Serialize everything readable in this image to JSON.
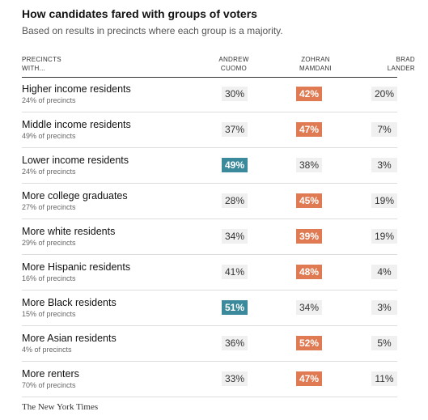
{
  "title": "How candidates fared with groups of voters",
  "subtitle": "Based on results in precincts where each group is a majority.",
  "headers": {
    "group_line1": "PRECINCTS",
    "group_line2": "WITH...",
    "c1_line1": "ANDREW",
    "c1_line2": "CUOMO",
    "c2_line1": "ZOHRAN",
    "c2_line2": "MAMDANI",
    "c3_line1": "BRAD",
    "c3_line2": "LANDER"
  },
  "colors": {
    "cuomo_highlight": "#3a8a9c",
    "mamdani_highlight": "#e07a52",
    "neutral_cell": "#f0f0f0"
  },
  "rows": [
    {
      "group": "Higher income residents",
      "share": "24% of precincts",
      "cuomo": "30%",
      "mamdani": "42%",
      "lander": "20%",
      "winner": "mamdani"
    },
    {
      "group": "Middle income residents",
      "share": "49% of precincts",
      "cuomo": "37%",
      "mamdani": "47%",
      "lander": "7%",
      "winner": "mamdani"
    },
    {
      "group": "Lower income residents",
      "share": "24% of precincts",
      "cuomo": "49%",
      "mamdani": "38%",
      "lander": "3%",
      "winner": "cuomo"
    },
    {
      "group": "More college graduates",
      "share": "27% of precincts",
      "cuomo": "28%",
      "mamdani": "45%",
      "lander": "19%",
      "winner": "mamdani"
    },
    {
      "group": "More white residents",
      "share": "29% of precincts",
      "cuomo": "34%",
      "mamdani": "39%",
      "lander": "19%",
      "winner": "mamdani"
    },
    {
      "group": "More Hispanic residents",
      "share": "16% of precincts",
      "cuomo": "41%",
      "mamdani": "48%",
      "lander": "4%",
      "winner": "mamdani"
    },
    {
      "group": "More Black residents",
      "share": "15% of precincts",
      "cuomo": "51%",
      "mamdani": "34%",
      "lander": "3%",
      "winner": "cuomo"
    },
    {
      "group": "More Asian residents",
      "share": "4% of precincts",
      "cuomo": "36%",
      "mamdani": "52%",
      "lander": "5%",
      "winner": "mamdani"
    },
    {
      "group": "More renters",
      "share": "70% of precincts",
      "cuomo": "33%",
      "mamdani": "47%",
      "lander": "11%",
      "winner": "mamdani"
    }
  ],
  "credit": "The New York Times"
}
